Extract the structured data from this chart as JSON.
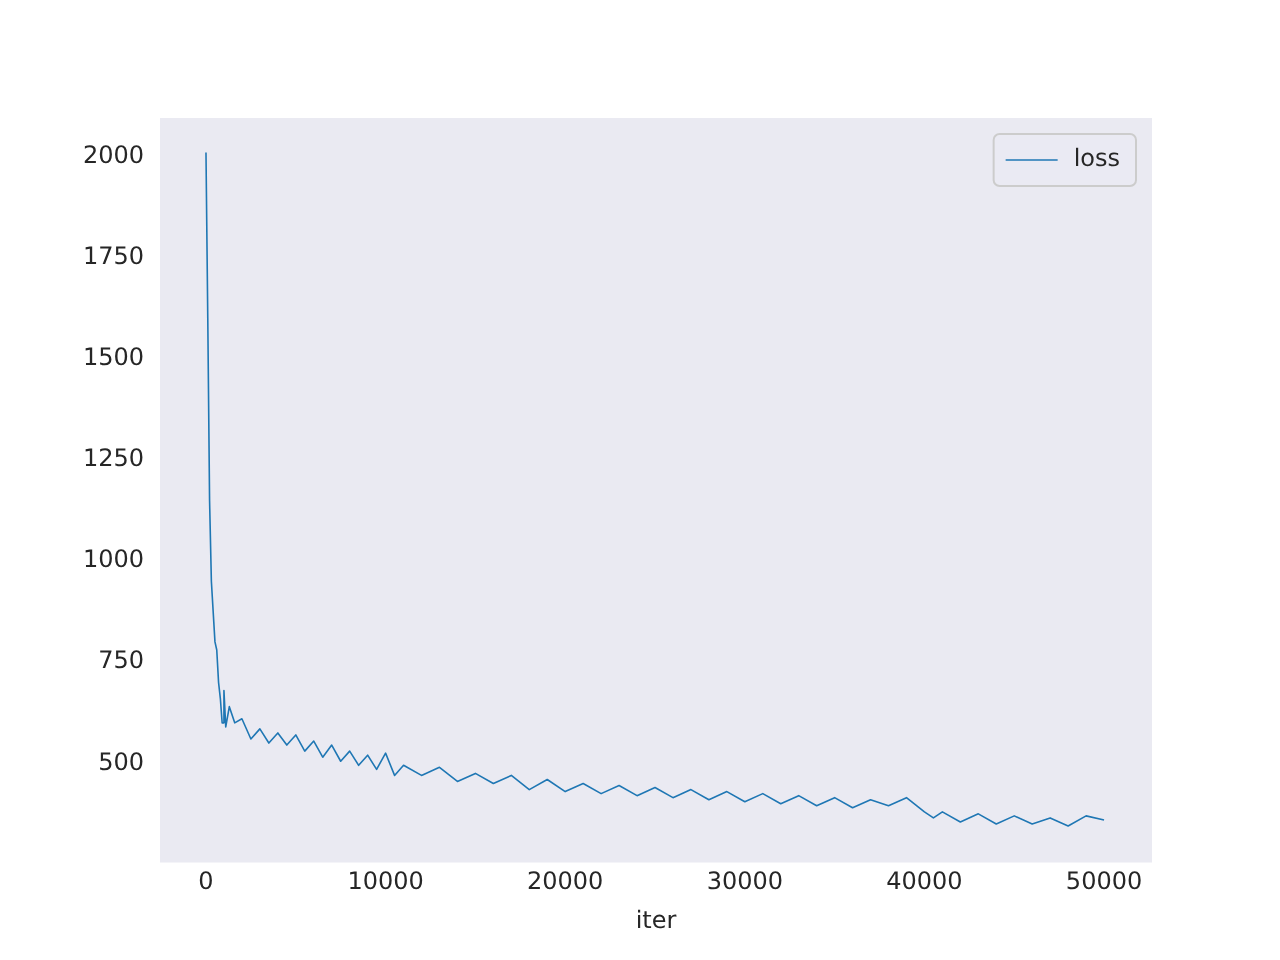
{
  "chart_data": {
    "type": "line",
    "xlabel": "iter",
    "xlim": [
      -2560,
      52670
    ],
    "ylim": [
      255,
      2095
    ],
    "xticks": [
      0,
      10000,
      20000,
      30000,
      40000,
      50000
    ],
    "yticks": [
      500,
      750,
      1000,
      1250,
      1500,
      1750,
      2000
    ],
    "grid": false,
    "legend": "top right",
    "marker": "none",
    "line_style": "solid",
    "x": [
      0,
      100,
      200,
      300,
      500,
      600,
      700,
      800,
      900,
      1000,
      1100,
      1300,
      1600,
      2000,
      2500,
      3000,
      3500,
      4000,
      4500,
      5000,
      5500,
      6000,
      6500,
      7000,
      7500,
      8000,
      8500,
      9000,
      9500,
      10000,
      10500,
      11000,
      12000,
      13000,
      14000,
      15000,
      16000,
      17000,
      18000,
      19000,
      20000,
      21000,
      22000,
      23000,
      24000,
      25000,
      26000,
      27000,
      28000,
      29000,
      30000,
      31000,
      32000,
      33000,
      34000,
      35000,
      36000,
      37000,
      38000,
      39000,
      40000,
      40500,
      41000,
      42000,
      43000,
      44000,
      45000,
      46000,
      47000,
      48000,
      49000,
      50000
    ],
    "series": [
      {
        "name": "loss",
        "color": "#1f77b4",
        "values": [
          2010,
          1600,
          1150,
          950,
          800,
          780,
          700,
          660,
          600,
          680,
          590,
          640,
          600,
          610,
          560,
          585,
          550,
          575,
          545,
          570,
          530,
          555,
          515,
          545,
          505,
          530,
          495,
          520,
          485,
          525,
          470,
          495,
          470,
          490,
          455,
          475,
          450,
          470,
          435,
          460,
          430,
          450,
          425,
          445,
          420,
          440,
          415,
          435,
          410,
          430,
          405,
          425,
          400,
          420,
          395,
          415,
          390,
          410,
          395,
          415,
          380,
          365,
          380,
          355,
          375,
          350,
          370,
          350,
          365,
          345,
          370,
          360
        ]
      }
    ]
  }
}
